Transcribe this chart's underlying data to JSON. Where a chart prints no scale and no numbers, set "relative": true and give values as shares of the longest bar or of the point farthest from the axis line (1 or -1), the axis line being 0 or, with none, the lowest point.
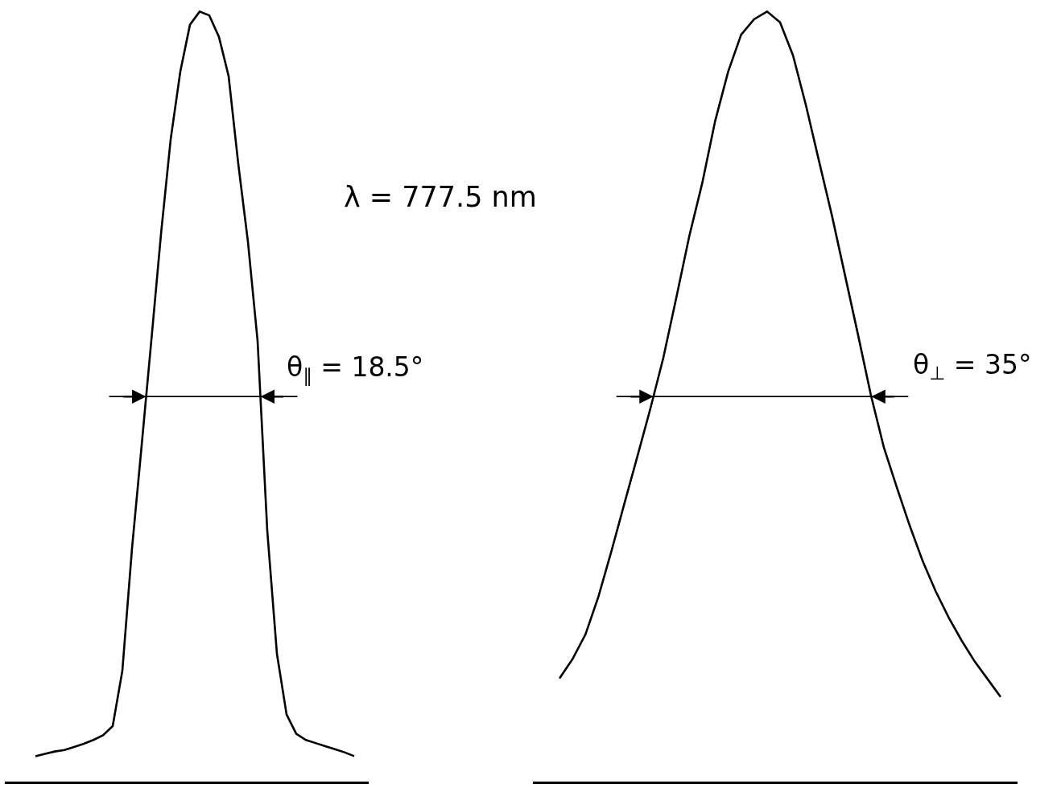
{
  "chart_data": [
    {
      "type": "line",
      "relative": true,
      "color": "#000000",
      "line_style": "solid",
      "categories": [
        null,
        null,
        null,
        null,
        null,
        null,
        null,
        null,
        null,
        null,
        null,
        null,
        null,
        null,
        null,
        null,
        null,
        null,
        null,
        null,
        null,
        null,
        null,
        null,
        null,
        null,
        null,
        null,
        null,
        null,
        null,
        null,
        null,
        null
      ],
      "values": [
        0.033,
        0.036,
        0.039,
        0.041,
        0.045,
        0.049,
        0.054,
        0.06,
        0.072,
        0.144,
        0.303,
        0.437,
        0.573,
        0.711,
        0.834,
        0.922,
        0.983,
        1,
        0.995,
        0.967,
        0.916,
        0.802,
        0.701,
        0.572,
        0.326,
        0.166,
        0.087,
        0.062,
        0.054,
        0.05,
        0.046,
        0.042,
        0.038,
        0.033
      ],
      "ref_lines": [
        {
          "axis": "y",
          "value": 0.5,
          "color": "#000000"
        }
      ],
      "annotations": [
        "λ = 777.5 nm",
        "θ$_{∥}$ = 18.5°"
      ]
    },
    {
      "type": "line",
      "relative": true,
      "color": "#000000",
      "line_style": "solid",
      "categories": [
        null,
        null,
        null,
        null,
        null,
        null,
        null,
        null,
        null,
        null,
        null,
        null,
        null,
        null,
        null,
        null,
        null,
        null,
        null,
        null,
        null,
        null,
        null,
        null,
        null,
        null,
        null,
        null,
        null,
        null,
        null,
        null,
        null,
        null,
        null
      ],
      "values": [
        0.134,
        0.159,
        0.191,
        0.24,
        0.299,
        0.361,
        0.422,
        0.484,
        0.55,
        0.628,
        0.708,
        0.777,
        0.858,
        0.922,
        0.97,
        0.99,
        1,
        0.986,
        0.943,
        0.878,
        0.806,
        0.735,
        0.658,
        0.581,
        0.502,
        0.434,
        0.382,
        0.332,
        0.286,
        0.247,
        0.213,
        0.183,
        0.156,
        0.133,
        0.11
      ],
      "ref_lines": [
        {
          "axis": "y",
          "value": 0.5,
          "color": "#000000"
        }
      ],
      "annotations": [
        "θ$_{⊥}$ = 35°"
      ]
    }
  ]
}
